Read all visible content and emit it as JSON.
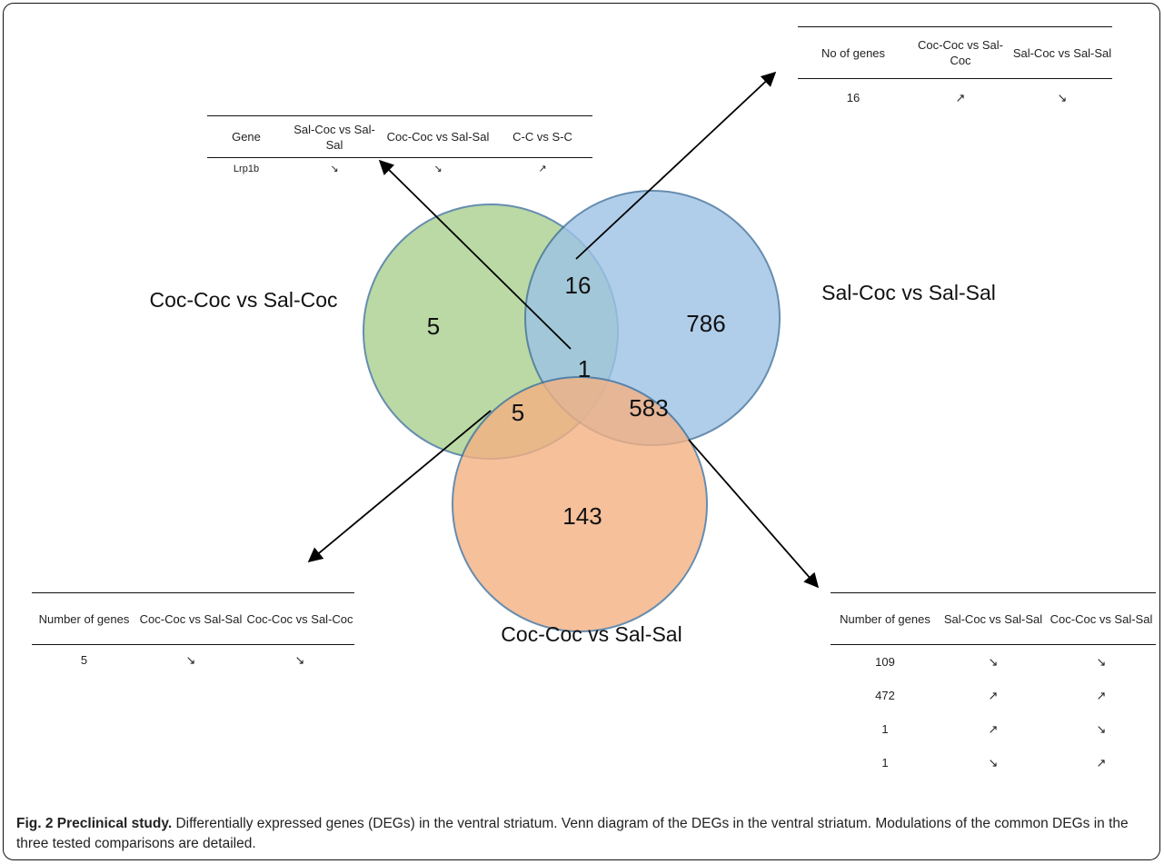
{
  "sets": [
    {
      "name": "Coc-Coc vs Sal-Coc",
      "color": "#a9d08e"
    },
    {
      "name": "Sal-Coc vs Sal-Sal",
      "color": "#9dc3e6"
    },
    {
      "name": "Coc-Coc vs Sal-Sal",
      "color": "#f4b183"
    }
  ],
  "region_counts": {
    "green_only": "5",
    "blue_only": "786",
    "orange_only": "143",
    "green_blue": "16",
    "green_orange": "5",
    "blue_orange": "583",
    "all_three": "1"
  },
  "tables": {
    "top_left": {
      "headers": [
        "Gene",
        "Sal-Coc vs Sal-Sal",
        "Coc-Coc vs Sal-Sal",
        "C-C vs S-C"
      ],
      "rows": [
        [
          "Lrp1b",
          "↘",
          "↘",
          "↗"
        ]
      ]
    },
    "top_right": {
      "headers": [
        "No of genes",
        "Coc-Coc vs Sal-Coc",
        "Sal-Coc vs Sal-Sal"
      ],
      "rows": [
        [
          "16",
          "↗",
          "↘"
        ]
      ]
    },
    "bottom_left": {
      "headers": [
        "Number of genes",
        "Coc-Coc vs Sal-Sal",
        "Coc-Coc vs Sal-Coc"
      ],
      "rows": [
        [
          "5",
          "↘",
          "↘"
        ]
      ]
    },
    "bottom_right": {
      "headers": [
        "Number of genes",
        "Sal-Coc vs Sal-Sal",
        "Coc-Coc vs Sal-Sal"
      ],
      "rows": [
        [
          "109",
          "↘",
          "↘"
        ],
        [
          "472",
          "↗",
          "↗"
        ],
        [
          "1",
          "↗",
          "↘"
        ],
        [
          "1",
          "↘",
          "↗"
        ]
      ]
    }
  },
  "caption": {
    "label": "Fig. 2 Preclinical study.",
    "text": " Differentially expressed genes (DEGs) in the ventral striatum. Venn diagram of the DEGs in the ventral striatum. Modulations of the common DEGs in the three tested comparisons are detailed."
  }
}
